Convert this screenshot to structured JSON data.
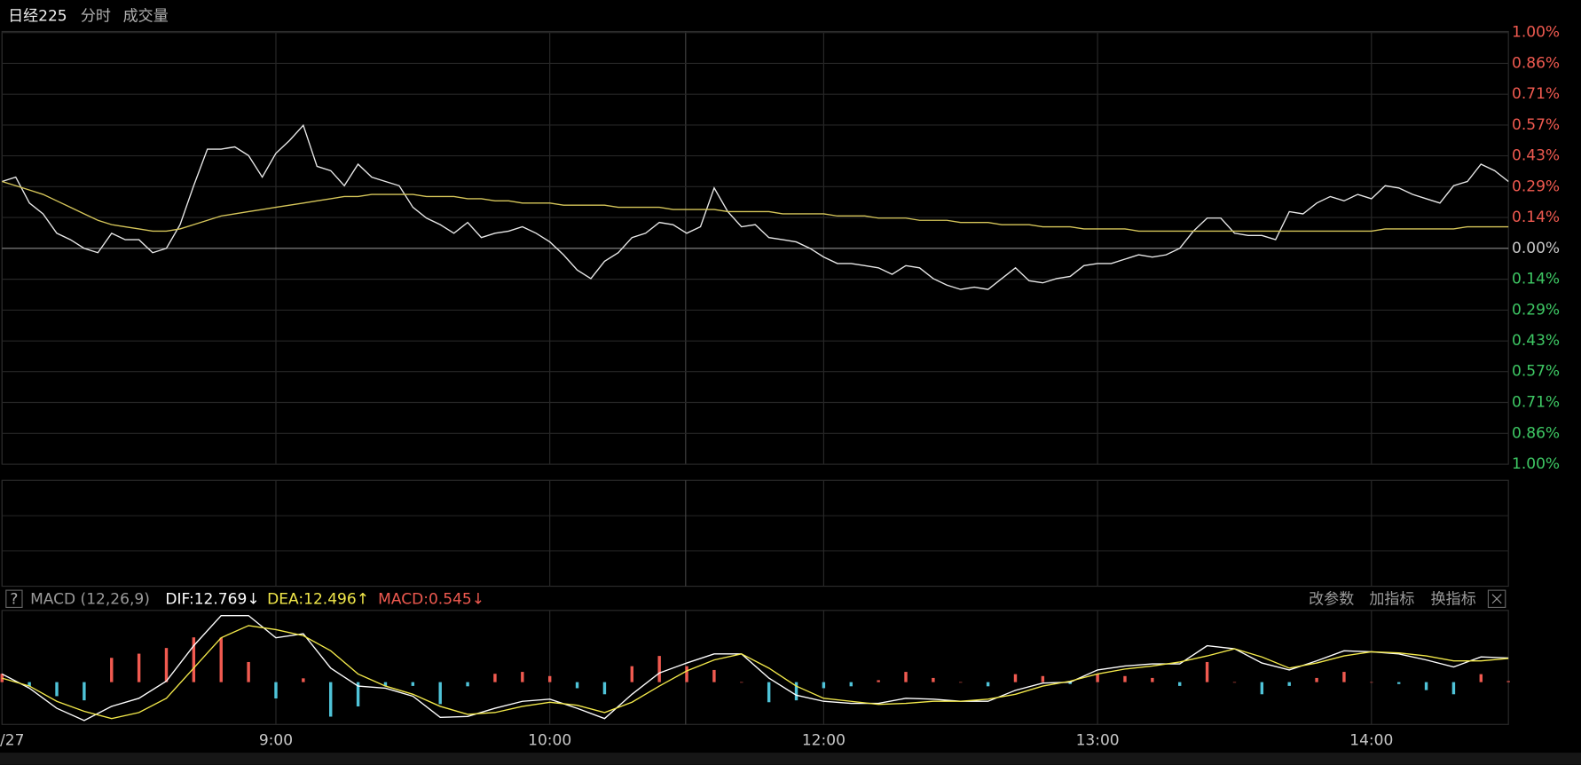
{
  "header": {
    "title": "日经225",
    "tabs": [
      "分时",
      "成交量"
    ]
  },
  "macd_toolbar": {
    "help": "?",
    "buttons": [
      "改参数",
      "加指标",
      "换指标"
    ]
  },
  "chart_data": [
    {
      "type": "line",
      "x": [
        0,
        3,
        6,
        9,
        12,
        15,
        18,
        21,
        24,
        27,
        30,
        33,
        36,
        39,
        42,
        45,
        48,
        51,
        54,
        57,
        60,
        63,
        66,
        69,
        72,
        75,
        78,
        81,
        84,
        87,
        90,
        93,
        96,
        99,
        102,
        105,
        108,
        111,
        114,
        117,
        120,
        123,
        126,
        129,
        132,
        135,
        138,
        141,
        144,
        147,
        150,
        153,
        156,
        159,
        162,
        165,
        168,
        171,
        174,
        177,
        180,
        183,
        186,
        189,
        192,
        195,
        198,
        201,
        204,
        207,
        210,
        213,
        216,
        219,
        222,
        225,
        228,
        231,
        234,
        237,
        240,
        243,
        246,
        249,
        252,
        255,
        258,
        261,
        264,
        267,
        270,
        273,
        276,
        279,
        282,
        285,
        288,
        291,
        294,
        297,
        300,
        303,
        306,
        309,
        312,
        315,
        318,
        321,
        324,
        327,
        330
      ],
      "series": [
        {
          "color": "#e8e8e8",
          "values": [
            0.31,
            0.33,
            0.21,
            0.16,
            0.07,
            0.04,
            0.0,
            -0.02,
            0.07,
            0.04,
            0.04,
            -0.02,
            0.0,
            0.11,
            0.29,
            0.46,
            0.46,
            0.47,
            0.43,
            0.33,
            0.44,
            0.5,
            0.57,
            0.38,
            0.36,
            0.29,
            0.39,
            0.33,
            0.31,
            0.29,
            0.19,
            0.14,
            0.11,
            0.07,
            0.12,
            0.05,
            0.07,
            0.08,
            0.1,
            0.07,
            0.03,
            -0.03,
            -0.1,
            -0.14,
            -0.06,
            -0.02,
            0.05,
            0.07,
            0.12,
            0.11,
            0.07,
            0.1,
            0.28,
            0.17,
            0.1,
            0.11,
            0.05,
            0.04,
            0.03,
            0.0,
            -0.04,
            -0.07,
            -0.07,
            -0.08,
            -0.09,
            -0.12,
            -0.08,
            -0.09,
            -0.14,
            -0.17,
            -0.19,
            -0.18,
            -0.19,
            -0.14,
            -0.09,
            -0.15,
            -0.16,
            -0.14,
            -0.13,
            -0.08,
            -0.07,
            -0.07,
            -0.05,
            -0.03,
            -0.04,
            -0.03,
            0.0,
            0.08,
            0.14,
            0.14,
            0.07,
            0.06,
            0.06,
            0.04,
            0.17,
            0.16,
            0.21,
            0.24,
            0.22,
            0.25,
            0.23,
            0.29,
            0.28,
            0.25,
            0.23,
            0.21,
            0.29,
            0.31,
            0.39,
            0.36,
            0.31
          ]
        },
        {
          "color": "#d6c65a",
          "values": [
            0.31,
            0.29,
            0.27,
            0.25,
            0.22,
            0.19,
            0.16,
            0.13,
            0.11,
            0.1,
            0.09,
            0.08,
            0.08,
            0.09,
            0.11,
            0.13,
            0.15,
            0.16,
            0.17,
            0.18,
            0.19,
            0.2,
            0.21,
            0.22,
            0.23,
            0.24,
            0.24,
            0.25,
            0.25,
            0.25,
            0.25,
            0.24,
            0.24,
            0.24,
            0.23,
            0.23,
            0.22,
            0.22,
            0.21,
            0.21,
            0.21,
            0.2,
            0.2,
            0.2,
            0.2,
            0.19,
            0.19,
            0.19,
            0.19,
            0.18,
            0.18,
            0.18,
            0.18,
            0.17,
            0.17,
            0.17,
            0.17,
            0.16,
            0.16,
            0.16,
            0.16,
            0.15,
            0.15,
            0.15,
            0.14,
            0.14,
            0.14,
            0.13,
            0.13,
            0.13,
            0.12,
            0.12,
            0.12,
            0.11,
            0.11,
            0.11,
            0.1,
            0.1,
            0.1,
            0.09,
            0.09,
            0.09,
            0.09,
            0.08,
            0.08,
            0.08,
            0.08,
            0.08,
            0.08,
            0.08,
            0.08,
            0.08,
            0.08,
            0.08,
            0.08,
            0.08,
            0.08,
            0.08,
            0.08,
            0.08,
            0.08,
            0.09,
            0.09,
            0.09,
            0.09,
            0.09,
            0.09,
            0.1,
            0.1,
            0.1,
            0.1
          ]
        }
      ],
      "xlim": [
        0,
        330
      ],
      "ylim": [
        -1.0,
        1.0
      ],
      "yticks": [
        {
          "value": 1.0,
          "label": "1.00%"
        },
        {
          "value": 0.857,
          "label": "0.86%"
        },
        {
          "value": 0.714,
          "label": "0.71%"
        },
        {
          "value": 0.571,
          "label": "0.57%"
        },
        {
          "value": 0.429,
          "label": "0.43%"
        },
        {
          "value": 0.286,
          "label": "0.29%"
        },
        {
          "value": 0.143,
          "label": "0.14%"
        },
        {
          "value": 0,
          "label": "0.00%"
        },
        {
          "value": -0.143,
          "label": "0.14%"
        },
        {
          "value": -0.286,
          "label": "0.29%"
        },
        {
          "value": -0.429,
          "label": "0.43%"
        },
        {
          "value": -0.571,
          "label": "0.57%"
        },
        {
          "value": -0.714,
          "label": "0.71%"
        },
        {
          "value": -0.857,
          "label": "0.86%"
        },
        {
          "value": -1.0,
          "label": "1.00%"
        }
      ],
      "up_color": "#f05a50",
      "down_color": "#3ec864",
      "zero_color": "#c8c8c8",
      "grid": true
    },
    {
      "type": "macd",
      "title": "MACD (12,26,9)",
      "x": [
        0,
        6,
        12,
        18,
        24,
        30,
        36,
        42,
        48,
        54,
        60,
        66,
        72,
        78,
        84,
        90,
        96,
        102,
        108,
        114,
        120,
        126,
        132,
        138,
        144,
        150,
        156,
        162,
        168,
        174,
        180,
        186,
        192,
        198,
        204,
        210,
        216,
        222,
        228,
        234,
        240,
        246,
        252,
        258,
        264,
        270,
        276,
        282,
        288,
        294,
        300,
        306,
        312,
        318,
        324,
        330
      ],
      "series": [
        {
          "name": "DIF:12.769↓",
          "color": "#ffffff",
          "values": [
            4.3,
            -3.2,
            -13.8,
            -20.2,
            -12.8,
            -8.5,
            0.5,
            19.2,
            35.1,
            35.1,
            23.4,
            25.5,
            7.4,
            -2.1,
            -3.2,
            -7.4,
            -18.6,
            -18.1,
            -13.8,
            -10.1,
            -9.0,
            -13.8,
            -19.2,
            -6.4,
            4.8,
            10.1,
            14.9,
            14.9,
            2.1,
            -6.9,
            -10.1,
            -11.2,
            -11.2,
            -8.5,
            -9.0,
            -10.1,
            -10.1,
            -4.3,
            -0.5,
            0,
            6.4,
            8.5,
            9.6,
            9.6,
            19.2,
            17.6,
            10.1,
            6.4,
            11.2,
            16.5,
            16.0,
            14.9,
            11.7,
            8.0,
            13.3,
            12.769
          ]
        },
        {
          "name": "DEA:12.496↑",
          "color": "#f2e84a",
          "values": [
            2.1,
            -2.1,
            -10.1,
            -15.4,
            -19.2,
            -16.0,
            -8.5,
            7.4,
            23.4,
            29.8,
            27.7,
            24.5,
            16.5,
            4.3,
            -2.1,
            -6.4,
            -12.8,
            -17.0,
            -16.0,
            -12.8,
            -10.6,
            -12.2,
            -16.0,
            -10.6,
            -2.1,
            5.9,
            11.7,
            14.9,
            7.4,
            -2.1,
            -8.5,
            -10.1,
            -11.7,
            -11.2,
            -10.1,
            -10.1,
            -9.0,
            -6.4,
            -2.1,
            0.5,
            4.3,
            6.9,
            8.5,
            10.6,
            13.8,
            17.6,
            13.3,
            7.4,
            10.1,
            13.8,
            16.0,
            15.4,
            13.8,
            11.2,
            11.2,
            12.496
          ]
        },
        {
          "name": "MACD:0.545↓",
          "color": "#f05a50",
          "negative_color": "#4fc3d8",
          "values": [
            4.4,
            -2.2,
            -7.4,
            -9.6,
            12.8,
            15.0,
            18.0,
            23.6,
            23.4,
            10.6,
            -8.6,
            2.0,
            -18.2,
            -12.8,
            -2.2,
            -2.0,
            -11.6,
            -2.2,
            4.4,
            5.4,
            3.2,
            -3.2,
            -6.4,
            8.4,
            13.8,
            8.4,
            6.4,
            0,
            -10.6,
            -9.6,
            -3.2,
            -2.2,
            1.0,
            5.4,
            2.2,
            0,
            -2.2,
            4.2,
            3.2,
            -1.0,
            4.2,
            3.2,
            2.2,
            -2.0,
            10.6,
            0,
            -6.4,
            -2.0,
            2.2,
            5.4,
            0,
            -1.0,
            -4.2,
            -6.4,
            4.2,
            0.545
          ]
        }
      ],
      "xlim": [
        0,
        330
      ],
      "ylim": [
        -22.3,
        37.8
      ],
      "xticks": [
        {
          "value": 0,
          "label": "/27"
        },
        {
          "value": 60,
          "label": "9:00"
        },
        {
          "value": 120,
          "label": "10:00"
        },
        {
          "value": 180,
          "label": "12:00"
        },
        {
          "value": 240,
          "label": "13:00"
        },
        {
          "value": 300,
          "label": "14:00"
        }
      ]
    }
  ]
}
